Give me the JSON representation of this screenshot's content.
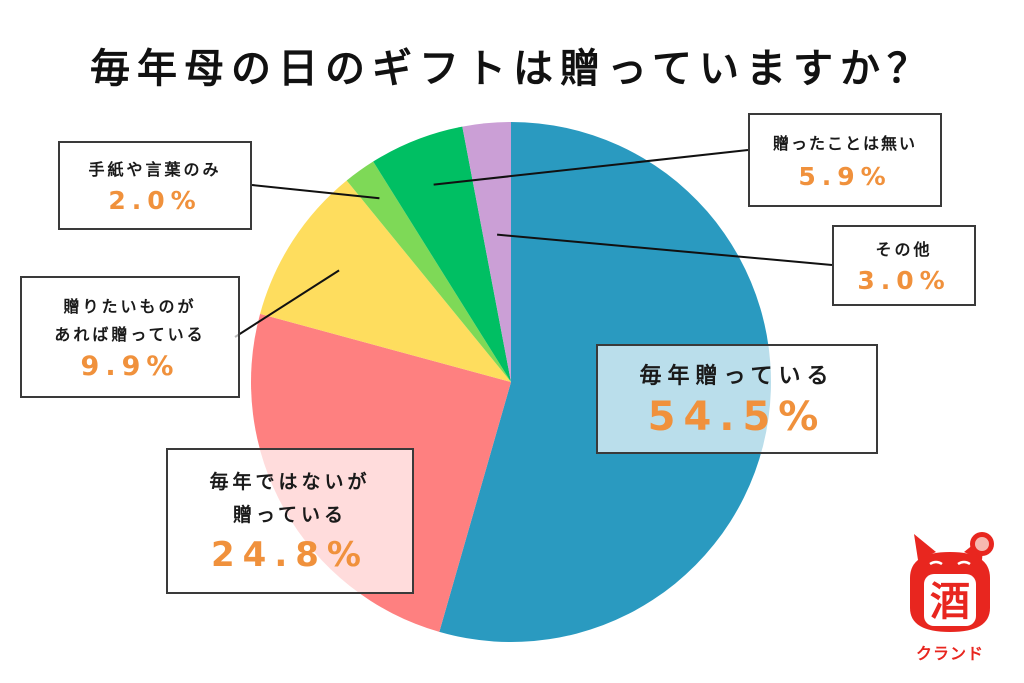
{
  "chart_data": {
    "type": "pie",
    "title": "毎年母の日のギフトは贈っていますか？",
    "start_angle_deg": 0,
    "direction": "clockwise",
    "slices": [
      {
        "lines": [
          "毎年贈っている"
        ],
        "value_label": "54.5%",
        "value": 54.5,
        "color": "#2a9ac0"
      },
      {
        "lines": [
          "毎年ではないが",
          "贈っている"
        ],
        "value_label": "24.8%",
        "value": 24.8,
        "color": "#fe8080"
      },
      {
        "lines": [
          "贈りたいものが",
          "あれば贈っている"
        ],
        "value_label": "9.9%",
        "value": 9.9,
        "color": "#fedd5e"
      },
      {
        "lines": [
          "手紙や言葉のみ"
        ],
        "value_label": "2.0%",
        "value": 2.0,
        "color": "#7ed957"
      },
      {
        "lines": [
          "贈ったことは無い"
        ],
        "value_label": "5.9%",
        "value": 5.9,
        "color": "#00bf63"
      },
      {
        "lines": [
          "その他"
        ],
        "value_label": "3.0%",
        "value": 3.0,
        "color": "#cb9fd6"
      }
    ]
  },
  "logo": {
    "icon": "maneki-neko-icon",
    "glyph": "酒",
    "text": "クランド",
    "color": "#e8261f"
  }
}
